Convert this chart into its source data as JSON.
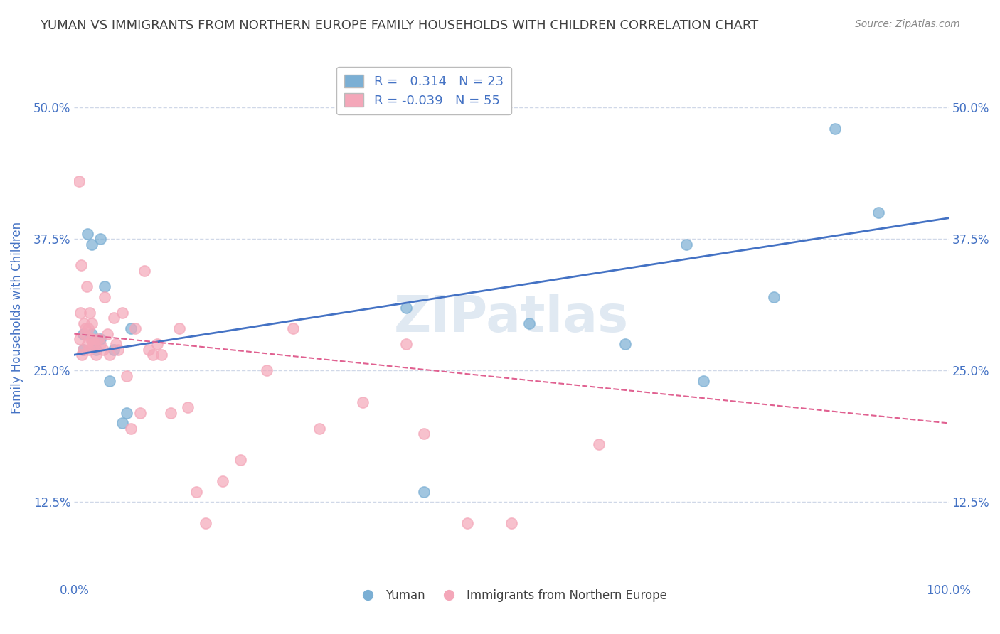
{
  "title": "YUMAN VS IMMIGRANTS FROM NORTHERN EUROPE FAMILY HOUSEHOLDS WITH CHILDREN CORRELATION CHART",
  "source": "Source: ZipAtlas.com",
  "ylabel": "Family Households with Children",
  "x_tick_labels": [
    "0.0%",
    "100.0%"
  ],
  "y_tick_labels": [
    "12.5%",
    "25.0%",
    "37.5%",
    "50.0%"
  ],
  "y_tick_right_labels": [
    "12.5%",
    "25.0%",
    "37.5%",
    "50.0%"
  ],
  "legend_label1": "Yuman",
  "legend_label2": "Immigrants from Northern Europe",
  "r1": "0.314",
  "n1": "23",
  "r2": "-0.039",
  "n2": "55",
  "blue_color": "#7bafd4",
  "pink_color": "#f4a7b9",
  "blue_line_color": "#4472c4",
  "pink_line_color": "#e06090",
  "title_color": "#404040",
  "axis_label_color": "#4472c4",
  "watermark_color": "#c8d8e8",
  "blue_scatter_x": [
    0.01,
    0.01,
    0.015,
    0.02,
    0.02,
    0.025,
    0.03,
    0.03,
    0.035,
    0.04,
    0.045,
    0.055,
    0.06,
    0.065,
    0.38,
    0.4,
    0.52,
    0.63,
    0.7,
    0.72,
    0.8,
    0.87,
    0.92
  ],
  "blue_scatter_y": [
    0.285,
    0.27,
    0.38,
    0.37,
    0.285,
    0.27,
    0.375,
    0.28,
    0.33,
    0.24,
    0.27,
    0.2,
    0.21,
    0.29,
    0.31,
    0.135,
    0.295,
    0.275,
    0.37,
    0.24,
    0.32,
    0.48,
    0.4
  ],
  "pink_scatter_x": [
    0.005,
    0.006,
    0.007,
    0.008,
    0.009,
    0.01,
    0.011,
    0.012,
    0.013,
    0.014,
    0.015,
    0.016,
    0.017,
    0.018,
    0.019,
    0.02,
    0.021,
    0.022,
    0.023,
    0.025,
    0.027,
    0.03,
    0.033,
    0.035,
    0.038,
    0.04,
    0.045,
    0.048,
    0.05,
    0.055,
    0.06,
    0.065,
    0.07,
    0.075,
    0.08,
    0.085,
    0.09,
    0.095,
    0.1,
    0.11,
    0.12,
    0.13,
    0.14,
    0.15,
    0.17,
    0.19,
    0.22,
    0.25,
    0.28,
    0.33,
    0.38,
    0.4,
    0.45,
    0.5,
    0.6
  ],
  "pink_scatter_y": [
    0.43,
    0.28,
    0.305,
    0.35,
    0.265,
    0.27,
    0.295,
    0.285,
    0.29,
    0.33,
    0.275,
    0.29,
    0.27,
    0.305,
    0.28,
    0.295,
    0.28,
    0.275,
    0.275,
    0.265,
    0.28,
    0.275,
    0.27,
    0.32,
    0.285,
    0.265,
    0.3,
    0.275,
    0.27,
    0.305,
    0.245,
    0.195,
    0.29,
    0.21,
    0.345,
    0.27,
    0.265,
    0.275,
    0.265,
    0.21,
    0.29,
    0.215,
    0.135,
    0.105,
    0.145,
    0.165,
    0.25,
    0.29,
    0.195,
    0.22,
    0.275,
    0.19,
    0.105,
    0.105,
    0.18
  ],
  "xlim": [
    0.0,
    1.0
  ],
  "ylim": [
    0.05,
    0.55
  ],
  "blue_line_x": [
    0.0,
    1.0
  ],
  "blue_line_y": [
    0.265,
    0.395
  ],
  "pink_line_x": [
    0.0,
    1.0
  ],
  "pink_line_y": [
    0.285,
    0.2
  ],
  "background_color": "#ffffff",
  "grid_color": "#d0d8e8"
}
